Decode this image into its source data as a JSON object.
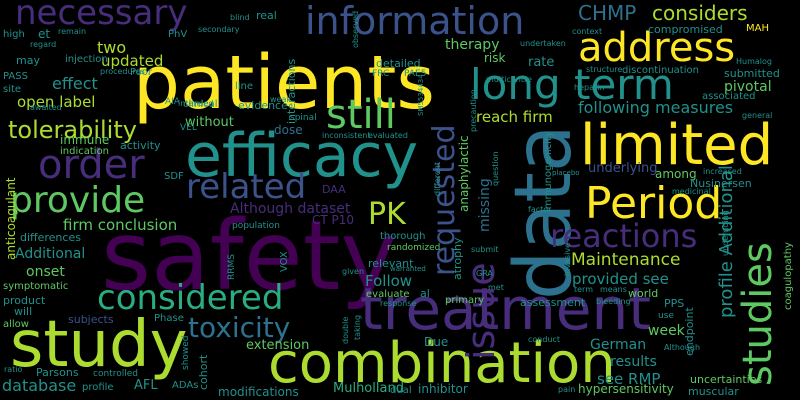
{
  "colors": {
    "background": "#000000",
    "purple": "#440154",
    "indigo": "#472d7b",
    "blue": "#3b528b",
    "steel": "#2c728e",
    "teal": "#21918c",
    "green": "#28ae80",
    "lime": "#5ec962",
    "chartreuse": "#addc30",
    "yellow": "#fde725"
  },
  "words": {
    "patients": "patients",
    "safety": "safety",
    "data": "data",
    "study": "study",
    "combination": "combination",
    "treatment": "treatment",
    "efficacy": "efficacy",
    "limited": "limited",
    "information": "information",
    "address": "address",
    "long_term": "long term",
    "necessary": "necessary",
    "order": "order",
    "provide": "provide",
    "period": "Period",
    "still": "still",
    "considered": "considered",
    "related": "related",
    "reactions": "reactions",
    "toxicity": "toxicity",
    "studies": "studies",
    "issue": "issue",
    "requested": "requested",
    "pk": "PK",
    "tolerability": "tolerability",
    "chmp": "CHMP",
    "considers": "considers",
    "maintenance": "Maintenance",
    "following_measures": "following measures",
    "reach_firm": "reach firm",
    "updated": "updated",
    "two": "two",
    "effect": "effect",
    "open_label": "open label",
    "firm_conclusion": "firm conclusion",
    "additional": "Additional",
    "onset": "onset",
    "database": "database",
    "extension": "extension",
    "modifications": "modifications",
    "mulholland": "Mulholland",
    "see_rmp": "see RMP",
    "results": "results",
    "week": "week",
    "german": "German",
    "provided_see": "provided see",
    "follow": "Follow",
    "profile_additional": "profile Additional",
    "although_dataset": "Although dataset",
    "ct_p10": "CT P10",
    "missing": "missing",
    "underlying": "underlying",
    "among": "among",
    "nusinersen": "Nusinersen",
    "therapy": "therapy",
    "risk": "risk",
    "rate": "rate",
    "pivotal": "pivotal",
    "submitted": "submitted",
    "compromised": "compromised",
    "dose": "dose",
    "without": "without",
    "evidence": "evidence",
    "immune": "immune",
    "indication": "indication",
    "activity": "activity",
    "anticoagulant": "anticoagulant",
    "differences": "differences",
    "symptomatic": "symptomatic",
    "product": "product",
    "will": "will",
    "allow": "allow",
    "subjects": "subjects",
    "phase": "Phase",
    "parsons": "Parsons",
    "profile": "profile",
    "afl": "AFL",
    "adas": "ADAs",
    "cohort": "cohort",
    "dual": "dual",
    "inhibitor": "inhibitor",
    "hypersensitivity": "hypersensitivity",
    "muscular": "muscular",
    "uncertainties": "uncertainties",
    "assessment": "assessment",
    "pps": "PPS",
    "world": "world",
    "primary": "primary",
    "evaluate": "evaluate",
    "relevant": "relevant",
    "randomized": "randomized",
    "thorough": "thorough",
    "atrophy": "atrophy",
    "anaphylactic": "anaphylactic",
    "immunogenicity": "immunogenicity",
    "endpoint": "endpoint",
    "coagulopathy": "coagulopathy",
    "high": "high",
    "et": "et",
    "remain": "remain",
    "blind": "blind",
    "real": "real",
    "line": "line",
    "interactions": "interactions",
    "clinical": "clinical",
    "poor": "Poor",
    "injection": "injection",
    "pass": "PASS",
    "may": "may",
    "site": "site",
    "phv": "PhV",
    "intended": "intended",
    "frc": "FRC",
    "pae5": "PAE5",
    "detailed": "detailed",
    "mah": "MAH",
    "humalog": "Humalog",
    "associated": "associated",
    "general": "general",
    "structure": "structure",
    "discontinuation": "discontinuation",
    "heparin": "heparin",
    "multicentre": "multicentre",
    "undertaken": "undertaken",
    "context": "context",
    "sdf": "SDF",
    "daa": "DAA",
    "vel": "VEL",
    "rrms": "RRMS",
    "vox": "VOX",
    "controlled": "controlled",
    "showed": "showed",
    "secondary": "secondary",
    "weak": "weak",
    "awaited": "awaited",
    "regard": "regard",
    "aia": "AIA",
    "procedures": "procedures",
    "population": "population",
    "spinal": "spinal",
    "inconsistent": "inconsistent",
    "evaluated": "evaluated",
    "given": "given",
    "double": "double",
    "taking": "taking",
    "response": "response",
    "gra": "GRA",
    "conduct": "conduct",
    "pain": "pain",
    "means": "means",
    "bleeding": "bleeding",
    "term": "term",
    "invasive": "invasive",
    "factor": "factor",
    "submit": "submit",
    "undergoing": "undergoing",
    "increased": "increased",
    "medicinal": "medicinal",
    "question": "question",
    "due": "Due",
    "met": "met",
    "use": "use",
    "ratio": "ratio",
    "although2": "Although",
    "serial": "SM5534434",
    "al": "al",
    "observed": "observed",
    "warranted": "warranted",
    "different": "different",
    "precaution": "precaution",
    "placebo": "placebo"
  }
}
